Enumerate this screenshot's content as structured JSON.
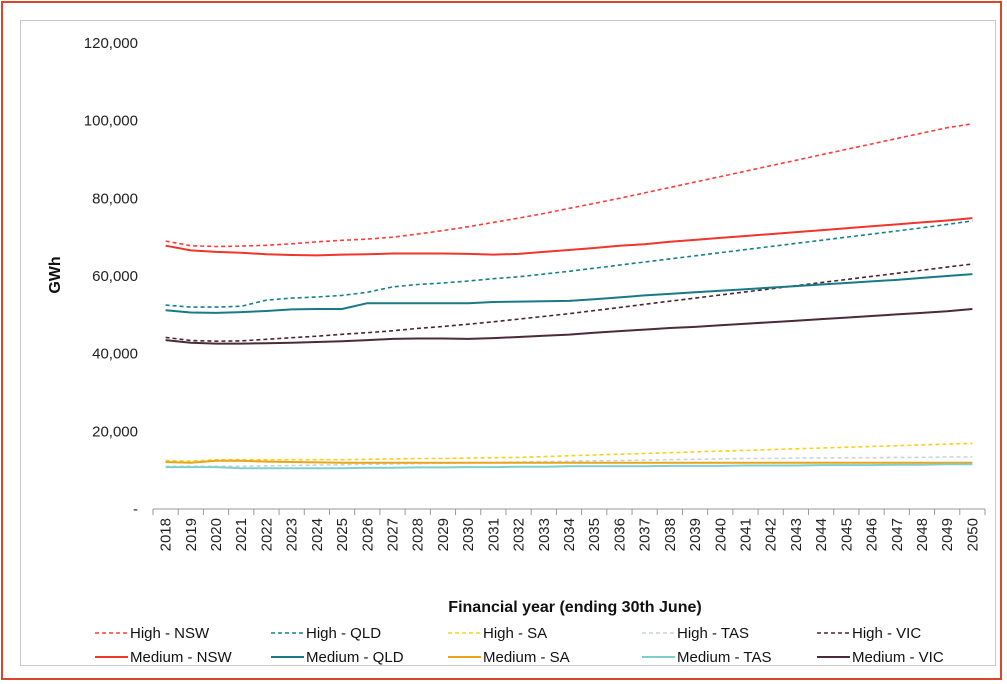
{
  "chart_data": {
    "type": "line",
    "xlabel": "Financial year (ending 30th June)",
    "ylabel": "GWh",
    "ylim": [
      0,
      120000
    ],
    "yticks": [
      0,
      20000,
      40000,
      60000,
      80000,
      100000,
      120000
    ],
    "ytick_labels": [
      "-",
      "20,000",
      "40,000",
      "60,000",
      "80,000",
      "100,000",
      "120,000"
    ],
    "x": [
      "2018",
      "2019",
      "2020",
      "2021",
      "2022",
      "2023",
      "2024",
      "2025",
      "2026",
      "2027",
      "2028",
      "2029",
      "2030",
      "2031",
      "2032",
      "2033",
      "2034",
      "2035",
      "2036",
      "2037",
      "2038",
      "2039",
      "2040",
      "2041",
      "2042",
      "2043",
      "2044",
      "2045",
      "2046",
      "2047",
      "2048",
      "2049",
      "2050"
    ],
    "grid": false,
    "legend_position": "bottom",
    "series": [
      {
        "name": "High - NSW",
        "color": "#ff3b3b",
        "dash": true,
        "values": [
          69000,
          67800,
          67600,
          67700,
          67900,
          68300,
          68800,
          69200,
          69500,
          70000,
          70800,
          71700,
          72700,
          73800,
          74900,
          76100,
          77400,
          78700,
          80000,
          81400,
          82800,
          84200,
          85600,
          87000,
          88400,
          89800,
          91200,
          92600,
          94000,
          95400,
          96800,
          98200,
          99200
        ]
      },
      {
        "name": "High - QLD",
        "color": "#17808c",
        "dash": true,
        "values": [
          52500,
          52000,
          52000,
          52200,
          53800,
          54300,
          54600,
          55000,
          55800,
          57200,
          57800,
          58200,
          58700,
          59300,
          59800,
          60500,
          61200,
          62000,
          62800,
          63600,
          64400,
          65200,
          66000,
          66800,
          67600,
          68400,
          69200,
          70000,
          70800,
          71600,
          72400,
          73300,
          74200
        ]
      },
      {
        "name": "High - SA",
        "color": "#f7d21c",
        "dash": true,
        "values": [
          12500,
          12300,
          12700,
          12700,
          12700,
          12700,
          12700,
          12700,
          12800,
          12900,
          13000,
          13000,
          13100,
          13200,
          13300,
          13500,
          13700,
          13900,
          14100,
          14300,
          14500,
          14700,
          14900,
          15100,
          15300,
          15500,
          15700,
          15900,
          16100,
          16300,
          16500,
          16700,
          16900
        ]
      },
      {
        "name": "High - TAS",
        "color": "#c9d3dc",
        "dash": true,
        "values": [
          11000,
          11000,
          11000,
          11000,
          11100,
          11200,
          11300,
          11400,
          11500,
          11600,
          11700,
          11800,
          11900,
          12000,
          12100,
          12200,
          12300,
          12400,
          12500,
          12600,
          12700,
          12800,
          12900,
          13000,
          13000,
          13100,
          13100,
          13200,
          13200,
          13300,
          13300,
          13400,
          13400
        ]
      },
      {
        "name": "High - VIC",
        "color": "#4e2430",
        "dash": true,
        "values": [
          44200,
          43400,
          43200,
          43300,
          43700,
          44100,
          44500,
          45000,
          45400,
          45900,
          46500,
          47000,
          47600,
          48200,
          48900,
          49600,
          50300,
          51100,
          51900,
          52700,
          53500,
          54300,
          55100,
          55900,
          56700,
          57500,
          58300,
          59100,
          59900,
          60700,
          61500,
          62300,
          63100
        ]
      },
      {
        "name": "Medium - NSW",
        "color": "#f0352a",
        "dash": false,
        "values": [
          67800,
          66600,
          66200,
          66000,
          65600,
          65400,
          65300,
          65500,
          65600,
          65800,
          65800,
          65800,
          65700,
          65500,
          65700,
          66200,
          66700,
          67200,
          67800,
          68200,
          68800,
          69300,
          69800,
          70300,
          70800,
          71300,
          71800,
          72300,
          72800,
          73300,
          73800,
          74300,
          74900
        ]
      },
      {
        "name": "Medium - QLD",
        "color": "#187a86",
        "dash": false,
        "values": [
          51200,
          50600,
          50500,
          50700,
          51000,
          51400,
          51500,
          51500,
          53000,
          53000,
          53000,
          53000,
          53000,
          53300,
          53400,
          53500,
          53600,
          54000,
          54500,
          55000,
          55400,
          55800,
          56200,
          56600,
          57000,
          57400,
          57800,
          58200,
          58600,
          59000,
          59500,
          60000,
          60500
        ]
      },
      {
        "name": "Medium - SA",
        "color": "#eba41a",
        "dash": false,
        "values": [
          12100,
          11900,
          12400,
          12400,
          12200,
          12100,
          12000,
          11900,
          11900,
          11900,
          11900,
          11900,
          11900,
          11900,
          11900,
          11900,
          11900,
          11900,
          11900,
          11900,
          11900,
          11900,
          11900,
          11900,
          11900,
          11900,
          11900,
          11900,
          11900,
          11900,
          11900,
          11900,
          11900
        ]
      },
      {
        "name": "Medium - TAS",
        "color": "#7fcfcf",
        "dash": false,
        "values": [
          10800,
          10800,
          10800,
          10500,
          10500,
          10500,
          10500,
          10500,
          10600,
          10600,
          10700,
          10700,
          10800,
          10800,
          10900,
          10900,
          11000,
          11000,
          11000,
          11000,
          11100,
          11100,
          11100,
          11200,
          11200,
          11200,
          11300,
          11300,
          11300,
          11400,
          11400,
          11500,
          11500
        ]
      },
      {
        "name": "Medium - VIC",
        "color": "#4b2b3a",
        "dash": false,
        "values": [
          43500,
          42800,
          42600,
          42600,
          42700,
          42800,
          43000,
          43200,
          43500,
          43800,
          43900,
          43900,
          43800,
          44000,
          44300,
          44600,
          44900,
          45400,
          45800,
          46200,
          46600,
          46900,
          47300,
          47700,
          48100,
          48500,
          48900,
          49300,
          49700,
          50100,
          50500,
          50900,
          51500
        ]
      }
    ]
  }
}
